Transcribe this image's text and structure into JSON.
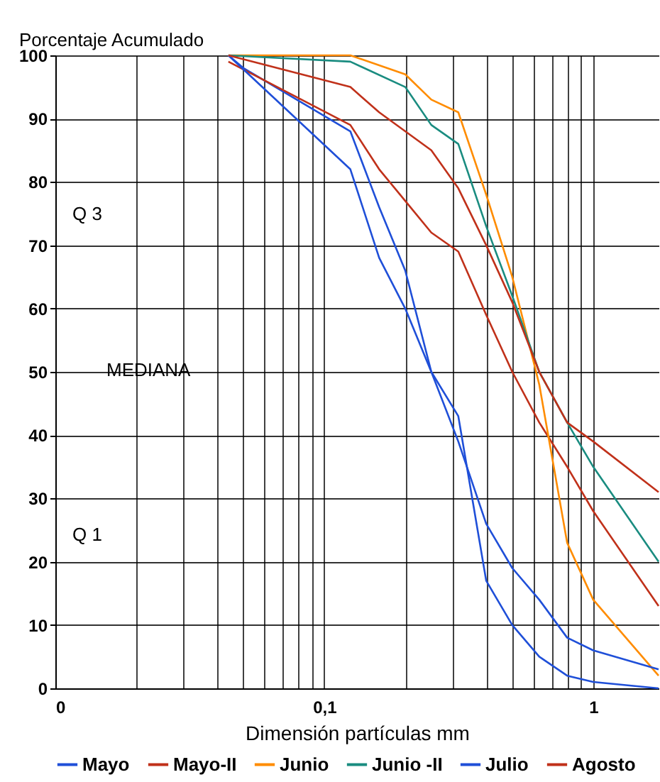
{
  "chart_data": {
    "type": "line",
    "ylabel": "Porcentaje Acumulado",
    "xlabel": "Dimensión partículas mm",
    "log": "x",
    "grid": true,
    "legend": "bottom",
    "line_style": "solid",
    "marker": "none",
    "xlim": [
      0.01,
      1.75
    ],
    "xticks": [
      {
        "value": 0.01,
        "label": "0"
      },
      {
        "value": 0.02,
        "label": null
      },
      {
        "value": 0.03,
        "label": null
      },
      {
        "value": 0.04,
        "label": null
      },
      {
        "value": 0.05,
        "label": null
      },
      {
        "value": 0.06,
        "label": null
      },
      {
        "value": 0.07,
        "label": null
      },
      {
        "value": 0.08,
        "label": null
      },
      {
        "value": 0.09,
        "label": null
      },
      {
        "value": 0.1,
        "label": "0,1"
      },
      {
        "value": 0.2,
        "label": null
      },
      {
        "value": 0.3,
        "label": null
      },
      {
        "value": 0.4,
        "label": null
      },
      {
        "value": 0.5,
        "label": null
      },
      {
        "value": 0.6,
        "label": null
      },
      {
        "value": 0.7,
        "label": null
      },
      {
        "value": 0.8,
        "label": null
      },
      {
        "value": 0.9,
        "label": null
      },
      {
        "value": 1,
        "label": "1"
      }
    ],
    "ylim": [
      0,
      100
    ],
    "yticks": [
      0,
      10,
      20,
      30,
      40,
      50,
      60,
      70,
      80,
      90,
      100
    ],
    "series": [
      {
        "name": "Mayo",
        "color": "#1f4fd8",
        "x": [
          0.044,
          0.05,
          0.125,
          0.16,
          0.2,
          0.25,
          0.315,
          0.4,
          0.5,
          0.63,
          0.8,
          1,
          1.75
        ],
        "values": [
          100,
          98,
          88,
          76,
          66,
          50,
          43,
          17,
          10,
          5,
          2,
          1,
          0
        ]
      },
      {
        "name": "Mayo-II",
        "color": "#c0311a",
        "x": [
          0.044,
          0.125,
          0.16,
          0.2,
          0.25,
          0.315,
          0.4,
          0.5,
          0.63,
          0.8,
          1,
          1.75
        ],
        "values": [
          99,
          89,
          82,
          77,
          72,
          69,
          59,
          50,
          42,
          35,
          28,
          13
        ]
      },
      {
        "name": "Junio",
        "color": "#ff8c00",
        "x": [
          0.044,
          0.125,
          0.2,
          0.25,
          0.315,
          0.4,
          0.5,
          0.63,
          0.8,
          1,
          1.75
        ],
        "values": [
          100,
          100,
          97,
          93,
          91,
          78,
          65,
          48,
          23,
          14,
          2
        ]
      },
      {
        "name": "Junio -II",
        "color": "#1a8c80",
        "x": [
          0.044,
          0.125,
          0.2,
          0.25,
          0.315,
          0.4,
          0.5,
          0.63,
          0.8,
          1,
          1.75
        ],
        "values": [
          100,
          99,
          95,
          89,
          86,
          73,
          62,
          50,
          42,
          35,
          20
        ]
      },
      {
        "name": "Julio",
        "color": "#1f4fd8",
        "x": [
          0.044,
          0.125,
          0.16,
          0.2,
          0.25,
          0.315,
          0.4,
          0.5,
          0.63,
          0.8,
          1,
          1.75
        ],
        "values": [
          100,
          82,
          68,
          60,
          50,
          39,
          26,
          19,
          14,
          8,
          6,
          3
        ]
      },
      {
        "name": "Agosto",
        "color": "#c0311a",
        "x": [
          0.044,
          0.125,
          0.16,
          0.2,
          0.25,
          0.315,
          0.4,
          0.5,
          0.63,
          0.8,
          1,
          1.75
        ],
        "values": [
          100,
          95,
          91,
          88,
          85,
          79,
          70,
          61,
          50,
          42,
          39,
          31
        ]
      }
    ],
    "annotations": [
      "Q 3",
      "MEDIANA",
      "Q 1"
    ]
  }
}
